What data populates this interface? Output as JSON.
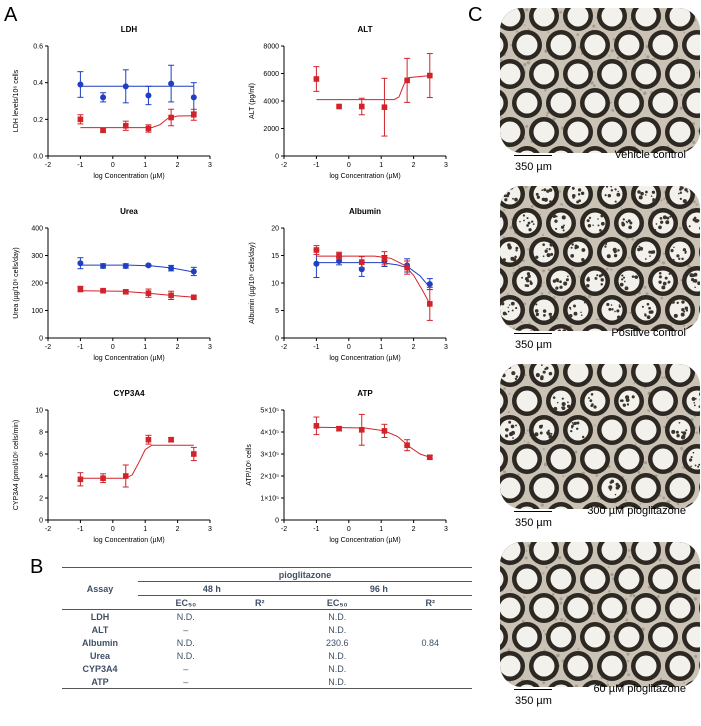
{
  "panels": {
    "a": "A",
    "b": "B",
    "c": "C"
  },
  "colors": {
    "blue": "#1f3fc4",
    "red": "#d2232a",
    "axis": "#000000"
  },
  "chart_data": [
    {
      "type": "scatter",
      "title": "LDH",
      "xlabel": "log Concentration (µM)",
      "ylabel": "LDH levels/10⁶ cells",
      "xlim": [
        -2,
        3
      ],
      "ylim": [
        0,
        0.6
      ],
      "xticks": [
        "-2",
        "-1",
        "0",
        "1",
        "2",
        "3"
      ],
      "yticks": [
        "0.0",
        "0.2",
        "0.4",
        "0.6"
      ],
      "series": [
        {
          "name": "48 h",
          "color": "blue",
          "x": [
            -1,
            -0.3,
            0.4,
            1.1,
            1.8,
            2.5
          ],
          "y": [
            0.39,
            0.32,
            0.38,
            0.33,
            0.395,
            0.32
          ],
          "err": [
            0.07,
            0.025,
            0.09,
            0.05,
            0.1,
            0.08
          ],
          "fit": [
            [
              -1,
              0.38
            ],
            [
              2.5,
              0.38
            ]
          ]
        },
        {
          "name": "96 h",
          "color": "red",
          "x": [
            -1,
            -0.3,
            0.4,
            1.1,
            1.8,
            2.5
          ],
          "y": [
            0.2,
            0.14,
            0.165,
            0.15,
            0.21,
            0.225
          ],
          "err": [
            0.025,
            0.008,
            0.025,
            0.02,
            0.045,
            0.03
          ],
          "fit": [
            [
              -1,
              0.155
            ],
            [
              1.2,
              0.155
            ],
            [
              1.45,
              0.17
            ],
            [
              1.7,
              0.205
            ],
            [
              2.0,
              0.218
            ],
            [
              2.5,
              0.22
            ]
          ]
        }
      ]
    },
    {
      "type": "scatter",
      "title": "ALT",
      "xlabel": "log Concentration (µM)",
      "ylabel": "ALT (pg/ml)",
      "xlim": [
        -2,
        3
      ],
      "ylim": [
        0,
        8000
      ],
      "xticks": [
        "-2",
        "-1",
        "0",
        "1",
        "2",
        "3"
      ],
      "yticks": [
        "0",
        "2000",
        "4000",
        "6000",
        "8000"
      ],
      "series": [
        {
          "name": "96 h",
          "color": "red",
          "x": [
            -1,
            -0.3,
            0.4,
            1.1,
            1.8,
            2.5
          ],
          "y": [
            5600,
            3600,
            3600,
            3550,
            5500,
            5850
          ],
          "err": [
            900,
            0,
            600,
            2100,
            1600,
            1600
          ],
          "fit": [
            [
              -1,
              4100
            ],
            [
              1.4,
              4100
            ],
            [
              1.55,
              4300
            ],
            [
              1.7,
              5200
            ],
            [
              1.85,
              5700
            ],
            [
              2.5,
              5850
            ]
          ]
        }
      ]
    },
    {
      "type": "scatter",
      "title": "Urea",
      "xlabel": "log Concentration (µM)",
      "ylabel": "Urea (µg/10⁶ cells/day)",
      "xlim": [
        -2,
        3
      ],
      "ylim": [
        0,
        400
      ],
      "xticks": [
        "-2",
        "-1",
        "0",
        "1",
        "2",
        "3"
      ],
      "yticks": [
        "0",
        "100",
        "200",
        "300",
        "400"
      ],
      "series": [
        {
          "name": "48 h",
          "color": "blue",
          "x": [
            -1,
            -0.3,
            0.4,
            1.1,
            1.8,
            2.5
          ],
          "y": [
            272,
            262,
            262,
            264,
            254,
            242
          ],
          "err": [
            20,
            8,
            8,
            4,
            10,
            15
          ],
          "fit": [
            [
              -1,
              265
            ],
            [
              0.5,
              265
            ],
            [
              1.2,
              262
            ],
            [
              1.8,
              255
            ],
            [
              2.5,
              240
            ]
          ]
        },
        {
          "name": "96 h",
          "color": "red",
          "x": [
            -1,
            -0.3,
            0.4,
            1.1,
            1.8,
            2.5
          ],
          "y": [
            178,
            172,
            168,
            163,
            155,
            148
          ],
          "err": [
            10,
            5,
            5,
            15,
            15,
            5
          ],
          "fit": [
            [
              -1,
              172
            ],
            [
              0.3,
              170
            ],
            [
              1.1,
              163
            ],
            [
              1.8,
              155
            ],
            [
              2.5,
              148
            ]
          ]
        }
      ]
    },
    {
      "type": "scatter",
      "title": "Albumin",
      "xlabel": "log Concentration (µM)",
      "ylabel": "Albumin (µg/10⁶ cells/day)",
      "xlim": [
        -2,
        3
      ],
      "ylim": [
        0,
        20
      ],
      "xticks": [
        "-2",
        "-1",
        "0",
        "1",
        "2",
        "3"
      ],
      "yticks": [
        "0",
        "5",
        "10",
        "15",
        "20"
      ],
      "series": [
        {
          "name": "48 h",
          "color": "blue",
          "x": [
            -1,
            -0.3,
            0.4,
            1.1,
            1.8,
            2.5
          ],
          "y": [
            13.5,
            14,
            12.5,
            14,
            13.2,
            9.8
          ],
          "err": [
            2.5,
            0.7,
            1.3,
            1,
            1.2,
            1
          ],
          "fit": [
            [
              -1,
              13.7
            ],
            [
              1.0,
              13.7
            ],
            [
              1.5,
              13.3
            ],
            [
              1.9,
              12.6
            ],
            [
              2.2,
              11.3
            ],
            [
              2.5,
              9.2
            ]
          ]
        },
        {
          "name": "96 h",
          "color": "red",
          "x": [
            -1,
            -0.3,
            0.4,
            1.1,
            1.8,
            2.5
          ],
          "y": [
            16,
            15,
            13.8,
            14.5,
            12.8,
            6.2
          ],
          "err": [
            0.8,
            0.6,
            1,
            1.2,
            1.2,
            3
          ],
          "fit": [
            [
              -1,
              14.9
            ],
            [
              0.8,
              14.9
            ],
            [
              1.3,
              14.5
            ],
            [
              1.7,
              13.3
            ],
            [
              2.0,
              11.4
            ],
            [
              2.3,
              8.4
            ],
            [
              2.5,
              6.2
            ]
          ]
        }
      ]
    },
    {
      "type": "scatter",
      "title": "CYP3A4",
      "xlabel": "log Concentration (µM)",
      "ylabel": "CYP3A4 (pmol/10⁶ cells/min)",
      "xlim": [
        -2,
        3
      ],
      "ylim": [
        0,
        10
      ],
      "xticks": [
        "-2",
        "-1",
        "0",
        "1",
        "2",
        "3"
      ],
      "yticks": [
        "0",
        "2",
        "4",
        "6",
        "8",
        "10"
      ],
      "series": [
        {
          "name": "96 h",
          "color": "red",
          "x": [
            -1,
            -0.3,
            0.4,
            1.1,
            1.8,
            2.5
          ],
          "y": [
            3.7,
            3.8,
            4.0,
            7.3,
            7.3,
            6.0
          ],
          "err": [
            0.6,
            0.4,
            1.0,
            0.4,
            0.2,
            0.6
          ],
          "fit": [
            [
              -1,
              3.8
            ],
            [
              0.4,
              3.8
            ],
            [
              0.6,
              4.1
            ],
            [
              0.8,
              5.2
            ],
            [
              1.0,
              6.4
            ],
            [
              1.2,
              6.8
            ],
            [
              2.5,
              6.8
            ]
          ]
        }
      ]
    },
    {
      "type": "scatter",
      "title": "ATP",
      "xlabel": "log Concentration (µM)",
      "ylabel": "ATP/10⁶ cells",
      "xlim": [
        -2,
        3
      ],
      "ylim": [
        0,
        500000
      ],
      "xticks": [
        "-2",
        "-1",
        "0",
        "1",
        "2",
        "3"
      ],
      "yticks": [
        "0",
        "1×10⁵",
        "2×10⁵",
        "3×10⁵",
        "4×10⁵",
        "5×10⁵"
      ],
      "series": [
        {
          "name": "96 h",
          "color": "red",
          "x": [
            -1,
            -0.3,
            0.4,
            1.1,
            1.8,
            2.5
          ],
          "y": [
            428000,
            415000,
            410000,
            405000,
            340000,
            285000
          ],
          "err": [
            40000,
            10000,
            70000,
            30000,
            25000,
            8000
          ],
          "fit": [
            [
              -1,
              422000
            ],
            [
              0.5,
              418000
            ],
            [
              1.1,
              405000
            ],
            [
              1.5,
              380000
            ],
            [
              1.9,
              330000
            ],
            [
              2.2,
              300000
            ],
            [
              2.5,
              285000
            ]
          ]
        }
      ]
    }
  ],
  "table": {
    "assay_header": "Assay",
    "group_header": "pioglitazone",
    "time_headers": [
      "48 h",
      "96 h"
    ],
    "ec50": "EC₅₀",
    "r2": "R²",
    "rows": [
      {
        "assay": "LDH",
        "ec48": "N.D.",
        "r48": "",
        "ec96": "N.D.",
        "r96": ""
      },
      {
        "assay": "ALT",
        "ec48": "–",
        "r48": "",
        "ec96": "N.D.",
        "r96": ""
      },
      {
        "assay": "Albumin",
        "ec48": "N.D.",
        "r48": "",
        "ec96": "230.6",
        "r96": "0.84"
      },
      {
        "assay": "Urea",
        "ec48": "N.D.",
        "r48": "",
        "ec96": "N.D.",
        "r96": ""
      },
      {
        "assay": "CYP3A4",
        "ec48": "–",
        "r48": "",
        "ec96": "N.D.",
        "r96": ""
      },
      {
        "assay": "ATP",
        "ec48": "–",
        "r48": "",
        "ec96": "N.D.",
        "r96": ""
      }
    ]
  },
  "micrographs": [
    {
      "scale": "350 µm",
      "label": "Vehicle control",
      "kind": "clear"
    },
    {
      "scale": "350 µm",
      "label": "Positive control",
      "kind": "damaged"
    },
    {
      "scale": "350 µm",
      "label": "300 µM pioglitazone",
      "kind": "partial"
    },
    {
      "scale": "350 µm",
      "label": "60 µM pioglitazone",
      "kind": "clear"
    }
  ]
}
